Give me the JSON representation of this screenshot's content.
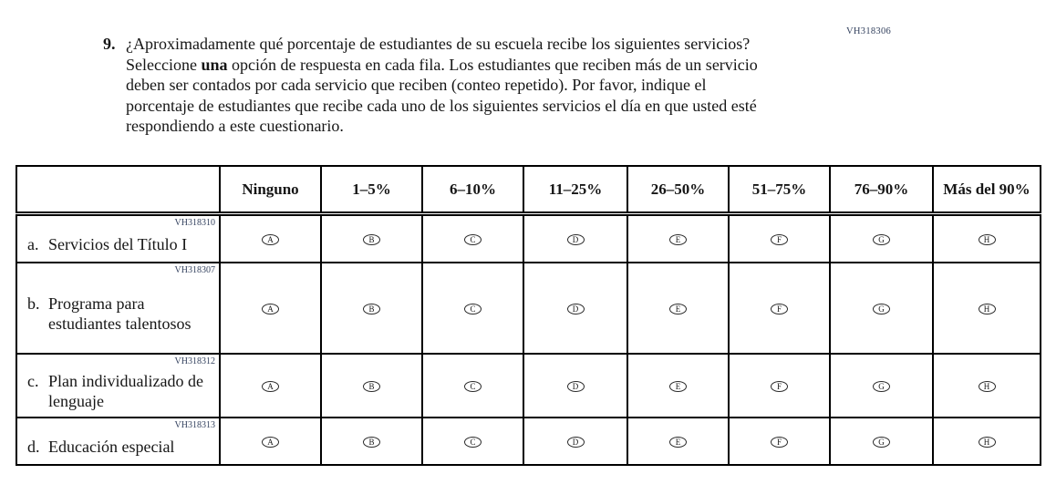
{
  "page": {
    "form_code": "VH318306"
  },
  "question": {
    "number": "9.",
    "text_before_bold": "¿Aproximadamente qué porcentaje de estudiantes de su escuela recibe los siguientes servicios? Seleccione ",
    "text_bold": "una",
    "text_after_bold": " opción de respuesta en cada fila. Los estudiantes que reciben más de un servicio deben ser contados por cada servicio que reciben (conteo repetido). Por favor, indique el porcentaje de estudiantes que recibe cada uno de los siguientes servicios el día en que usted esté respondiendo a este cuestionario."
  },
  "table": {
    "headers": [
      "Ninguno",
      "1–5%",
      "6–10%",
      "11–25%",
      "26–50%",
      "51–75%",
      "76–90%",
      "Más del 90%"
    ],
    "option_letters": [
      "A",
      "B",
      "C",
      "D",
      "E",
      "F",
      "G",
      "H"
    ],
    "rows": [
      {
        "code": "VH318310",
        "letter": "a.",
        "label": "Servicios del Título I"
      },
      {
        "code": "VH318307",
        "letter": "b.",
        "label": "Programa para estudiantes talentosos"
      },
      {
        "code": "VH318312",
        "letter": "c.",
        "label": "Plan individualizado de lenguaje"
      },
      {
        "code": "VH318313",
        "letter": "d.",
        "label": "Educación especial"
      }
    ]
  },
  "colors": {
    "text": "#161616",
    "border": "#000000",
    "code_text": "#33415e",
    "background": "#ffffff"
  }
}
